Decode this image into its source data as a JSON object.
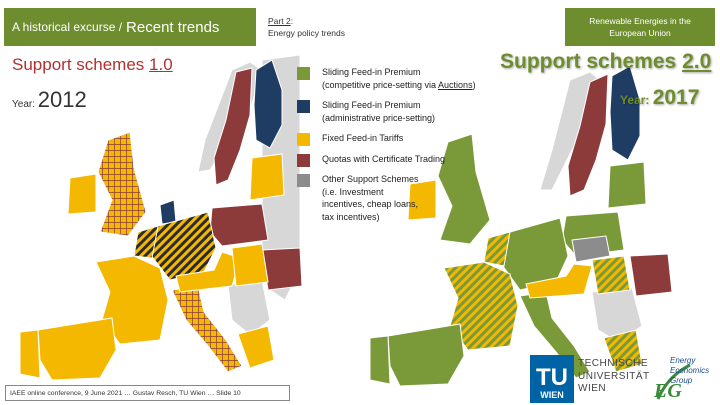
{
  "header": {
    "title_prefix": "A historical excurse /",
    "title_main": "Recent trends",
    "part_label": "Part 2",
    "part_suffix": ":",
    "part_subtitle": "Energy policy trends",
    "topic_box": "Renewable Energies in the European Union"
  },
  "left_map": {
    "scheme_prefix": "Support schemes",
    "scheme_version": "1.0",
    "year_label": "Year:",
    "year_value": "2012"
  },
  "right_map": {
    "scheme_prefix": "Support schemes",
    "scheme_version": "2.0",
    "year_label": "Year:",
    "year_value": "2017"
  },
  "legend": [
    {
      "color": "#7a9a3a",
      "line1": "Sliding Feed-in Premium",
      "line2_pre": "(competitive price-setting via ",
      "line2_link": "Auctions",
      "line2_post": ")"
    },
    {
      "color": "#1f3d63",
      "line1": "Sliding Feed-in Premium",
      "line2_pre": "(administrative price-setting)",
      "line2_link": "",
      "line2_post": ""
    },
    {
      "color": "#f4b800",
      "line1": "Fixed Feed-in Tariffs",
      "line2_pre": "",
      "line2_link": "",
      "line2_post": ""
    },
    {
      "color": "#8c3a3a",
      "line1": "Quotas with Certificate Trading",
      "line2_pre": "",
      "line2_link": "",
      "line2_post": ""
    },
    {
      "color": "#8c8c8c",
      "line1": "Other Support Schemes",
      "line2_pre": "(i.e. Investment",
      "line3": "incentives, cheap loans,",
      "line4": "tax incentives)"
    }
  ],
  "footer": {
    "text": "IAEE online conference, 9 June 2021 … Gustav Resch, TU Wien … Slide 10"
  },
  "logos": {
    "tu_mark": "TU",
    "tu_sub": "WIEN",
    "tu_line1": "TECHNISCHE",
    "tu_line2": "UNIVERSITÄT",
    "tu_line3": "WIEN",
    "eeg_letter": "EG",
    "eeg_line1": "Energy",
    "eeg_line2": "Economics",
    "eeg_line3": "Group"
  },
  "colors": {
    "auction_fip": "#7a9a3a",
    "admin_fip": "#1f3d63",
    "fit": "#f4b800",
    "quota": "#8c3a3a",
    "other": "#8c8c8c",
    "non_eu": "#d7d7d7",
    "sea": "#ffffff",
    "accent": "#6e8d2e"
  }
}
